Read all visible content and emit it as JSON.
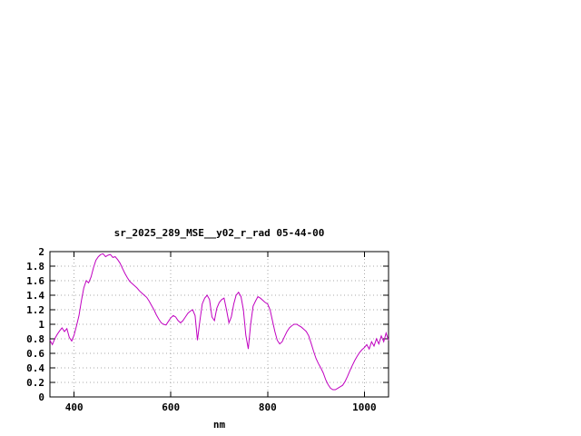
{
  "window": {
    "background": "#ffffff"
  },
  "chart_data": {
    "type": "line",
    "title": "sr_2025_289_MSE__y02_r_rad 05-44-00",
    "xlabel": "nm",
    "ylabel": "",
    "xlim": [
      350,
      1050
    ],
    "ylim": [
      0,
      2
    ],
    "xticks": [
      400,
      600,
      800,
      1000
    ],
    "yticks": [
      0,
      0.2,
      0.4,
      0.6,
      0.8,
      1,
      1.2,
      1.4,
      1.6,
      1.8,
      2
    ],
    "grid": true,
    "legend": "none",
    "line_color": "#c000c0",
    "axis_color": "#000000",
    "grid_color": "#a8a8a8",
    "series": [
      {
        "name": "spectral_radiance",
        "x": [
          350,
          355,
          360,
          365,
          370,
          375,
          380,
          385,
          390,
          395,
          400,
          405,
          410,
          415,
          420,
          425,
          430,
          435,
          440,
          445,
          450,
          455,
          460,
          465,
          470,
          475,
          480,
          485,
          490,
          495,
          500,
          505,
          510,
          515,
          520,
          525,
          530,
          535,
          540,
          545,
          550,
          555,
          560,
          565,
          570,
          575,
          580,
          585,
          590,
          595,
          600,
          605,
          610,
          615,
          620,
          625,
          630,
          635,
          640,
          645,
          650,
          655,
          660,
          665,
          670,
          675,
          680,
          685,
          690,
          695,
          700,
          705,
          710,
          715,
          720,
          725,
          730,
          735,
          740,
          745,
          750,
          755,
          760,
          765,
          770,
          775,
          780,
          785,
          790,
          795,
          800,
          805,
          810,
          815,
          820,
          825,
          830,
          835,
          840,
          845,
          850,
          855,
          860,
          865,
          870,
          875,
          880,
          885,
          890,
          895,
          900,
          905,
          910,
          915,
          920,
          925,
          930,
          935,
          940,
          945,
          950,
          955,
          960,
          965,
          970,
          975,
          980,
          985,
          990,
          995,
          1000,
          1005,
          1010,
          1015,
          1020,
          1025,
          1030,
          1035,
          1040,
          1045,
          1050
        ],
        "y": [
          0.78,
          0.72,
          0.8,
          0.86,
          0.91,
          0.95,
          0.9,
          0.94,
          0.82,
          0.77,
          0.85,
          0.98,
          1.12,
          1.32,
          1.5,
          1.6,
          1.57,
          1.65,
          1.78,
          1.88,
          1.93,
          1.96,
          1.97,
          1.93,
          1.95,
          1.96,
          1.92,
          1.93,
          1.89,
          1.84,
          1.77,
          1.7,
          1.64,
          1.59,
          1.56,
          1.53,
          1.5,
          1.46,
          1.43,
          1.4,
          1.37,
          1.32,
          1.26,
          1.2,
          1.13,
          1.07,
          1.02,
          1.0,
          0.99,
          1.04,
          1.09,
          1.12,
          1.1,
          1.05,
          1.02,
          1.05,
          1.1,
          1.15,
          1.18,
          1.2,
          1.12,
          0.78,
          1.05,
          1.28,
          1.36,
          1.4,
          1.34,
          1.1,
          1.05,
          1.22,
          1.3,
          1.34,
          1.36,
          1.2,
          1.02,
          1.1,
          1.28,
          1.4,
          1.44,
          1.38,
          1.2,
          0.85,
          0.66,
          1.0,
          1.25,
          1.32,
          1.38,
          1.36,
          1.33,
          1.3,
          1.28,
          1.2,
          1.05,
          0.9,
          0.78,
          0.73,
          0.76,
          0.83,
          0.9,
          0.95,
          0.98,
          1.0,
          1.0,
          0.98,
          0.96,
          0.93,
          0.9,
          0.84,
          0.74,
          0.63,
          0.53,
          0.46,
          0.4,
          0.33,
          0.24,
          0.17,
          0.12,
          0.1,
          0.1,
          0.12,
          0.14,
          0.16,
          0.21,
          0.28,
          0.36,
          0.43,
          0.5,
          0.56,
          0.61,
          0.65,
          0.68,
          0.72,
          0.66,
          0.76,
          0.7,
          0.8,
          0.73,
          0.84,
          0.76,
          0.88,
          0.78
        ]
      }
    ]
  }
}
